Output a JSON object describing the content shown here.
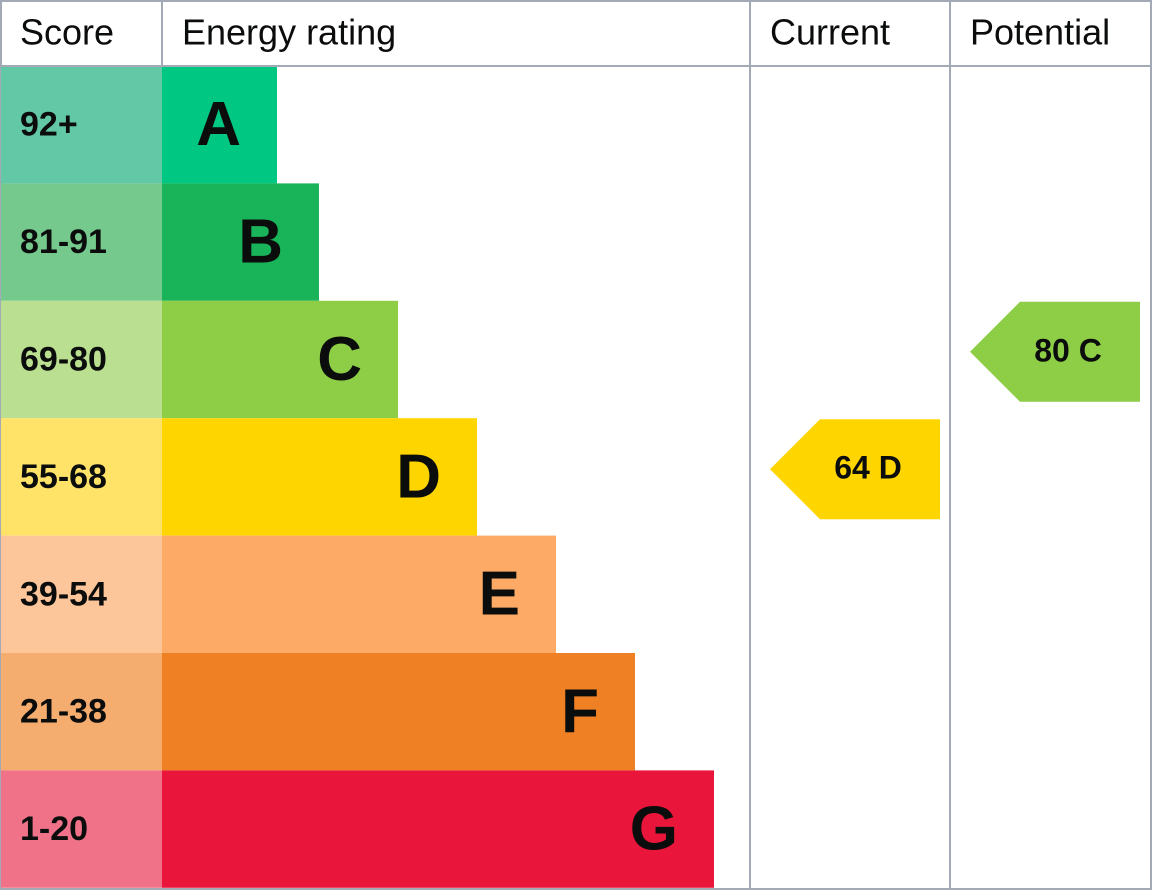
{
  "header": {
    "score": "Score",
    "energy_rating": "Energy rating",
    "current": "Current",
    "potential": "Potential"
  },
  "bands": [
    {
      "score": "92+",
      "letter": "A",
      "color": "#00c781",
      "score_color": "#62c8a6"
    },
    {
      "score": "81-91",
      "letter": "B",
      "color": "#19b459",
      "score_color": "#75c98c"
    },
    {
      "score": "69-80",
      "letter": "C",
      "color": "#8dce46",
      "score_color": "#badf90"
    },
    {
      "score": "55-68",
      "letter": "D",
      "color": "#ffd500",
      "score_color": "#ffe369"
    },
    {
      "score": "39-54",
      "letter": "E",
      "color": "#fcaa65",
      "score_color": "#fdc59a"
    },
    {
      "score": "21-38",
      "letter": "F",
      "color": "#ef8023",
      "score_color": "#f4ac6f"
    },
    {
      "score": "1-20",
      "letter": "G",
      "color": "#e9153b",
      "score_color": "#f07289"
    }
  ],
  "current": {
    "label": "64 D"
  },
  "potential": {
    "label": "80 C"
  }
}
